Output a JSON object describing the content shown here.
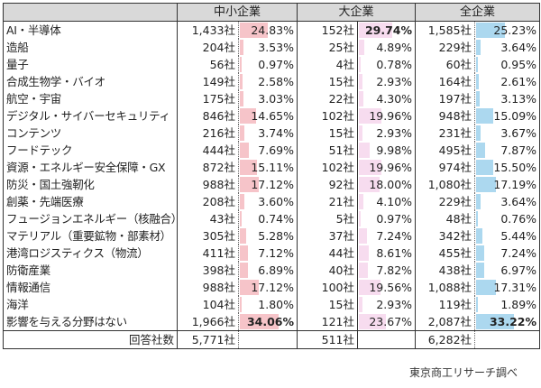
{
  "header": {
    "blank": "",
    "groups": [
      "中小企業",
      "大企業",
      "全企業"
    ]
  },
  "colors": {
    "sme_bar": "#f6c4c9",
    "large_bar": "#f7dcef",
    "all_bar": "#acd8ef",
    "header_bg": "#d9d9d9"
  },
  "rows": [
    {
      "label": "AI・半導体",
      "sme_count": "1,433社",
      "sme_pct": "24.83%",
      "large_count": "152社",
      "large_pct": "29.74%",
      "all_count": "1,585社",
      "all_pct": "25.23%"
    },
    {
      "label": "造船",
      "sme_count": "204社",
      "sme_pct": "3.53%",
      "large_count": "25社",
      "large_pct": "4.89%",
      "all_count": "229社",
      "all_pct": "3.64%"
    },
    {
      "label": "量子",
      "sme_count": "56社",
      "sme_pct": "0.97%",
      "large_count": "4社",
      "large_pct": "0.78%",
      "all_count": "60社",
      "all_pct": "0.95%"
    },
    {
      "label": "合成生物学・バイオ",
      "sme_count": "149社",
      "sme_pct": "2.58%",
      "large_count": "15社",
      "large_pct": "2.93%",
      "all_count": "164社",
      "all_pct": "2.61%"
    },
    {
      "label": "航空・宇宙",
      "sme_count": "175社",
      "sme_pct": "3.03%",
      "large_count": "22社",
      "large_pct": "4.30%",
      "all_count": "197社",
      "all_pct": "3.13%"
    },
    {
      "label": "デジタル・サイバーセキュリティ",
      "sme_count": "846社",
      "sme_pct": "14.65%",
      "large_count": "102社",
      "large_pct": "19.96%",
      "all_count": "948社",
      "all_pct": "15.09%"
    },
    {
      "label": "コンテンツ",
      "sme_count": "216社",
      "sme_pct": "3.74%",
      "large_count": "15社",
      "large_pct": "2.93%",
      "all_count": "231社",
      "all_pct": "3.67%"
    },
    {
      "label": "フードテック",
      "sme_count": "444社",
      "sme_pct": "7.69%",
      "large_count": "51社",
      "large_pct": "9.98%",
      "all_count": "495社",
      "all_pct": "7.87%"
    },
    {
      "label": "資源・エネルギー安全保障・GX",
      "sme_count": "872社",
      "sme_pct": "15.11%",
      "large_count": "102社",
      "large_pct": "19.96%",
      "all_count": "974社",
      "all_pct": "15.50%"
    },
    {
      "label": "防災・国土強靭化",
      "sme_count": "988社",
      "sme_pct": "17.12%",
      "large_count": "92社",
      "large_pct": "18.00%",
      "all_count": "1,080社",
      "all_pct": "17.19%"
    },
    {
      "label": "創薬・先端医療",
      "sme_count": "208社",
      "sme_pct": "3.60%",
      "large_count": "21社",
      "large_pct": "4.10%",
      "all_count": "229社",
      "all_pct": "3.64%"
    },
    {
      "label": "フュージョンエネルギー（核融合）",
      "sme_count": "43社",
      "sme_pct": "0.74%",
      "large_count": "5社",
      "large_pct": "0.97%",
      "all_count": "48社",
      "all_pct": "0.76%"
    },
    {
      "label": "マテリアル（重要鉱物・部素材）",
      "sme_count": "305社",
      "sme_pct": "5.28%",
      "large_count": "37社",
      "large_pct": "7.24%",
      "all_count": "342社",
      "all_pct": "5.44%"
    },
    {
      "label": "港湾ロジスティクス（物流）",
      "sme_count": "411社",
      "sme_pct": "7.12%",
      "large_count": "44社",
      "large_pct": "8.61%",
      "all_count": "455社",
      "all_pct": "7.24%"
    },
    {
      "label": "防衛産業",
      "sme_count": "398社",
      "sme_pct": "6.89%",
      "large_count": "40社",
      "large_pct": "7.82%",
      "all_count": "438社",
      "all_pct": "6.97%"
    },
    {
      "label": "情報通信",
      "sme_count": "988社",
      "sme_pct": "17.12%",
      "large_count": "100社",
      "large_pct": "19.56%",
      "all_count": "1,088社",
      "all_pct": "17.31%"
    },
    {
      "label": "海洋",
      "sme_count": "104社",
      "sme_pct": "1.80%",
      "large_count": "15社",
      "large_pct": "2.93%",
      "all_count": "119社",
      "all_pct": "1.89%"
    },
    {
      "label": "影響を与える分野はない",
      "sme_count": "1,966社",
      "sme_pct": "34.06%",
      "large_count": "121社",
      "large_pct": "23.67%",
      "all_count": "2,087社",
      "all_pct": "33.22%"
    }
  ],
  "bold_max": {
    "sme": 17,
    "large": 0,
    "all": 17
  },
  "footer": {
    "label": "回答社数",
    "sme_total": "5,771社",
    "large_total": "511社",
    "all_total": "6,282社"
  },
  "source": "東京商工リサーチ調べ"
}
